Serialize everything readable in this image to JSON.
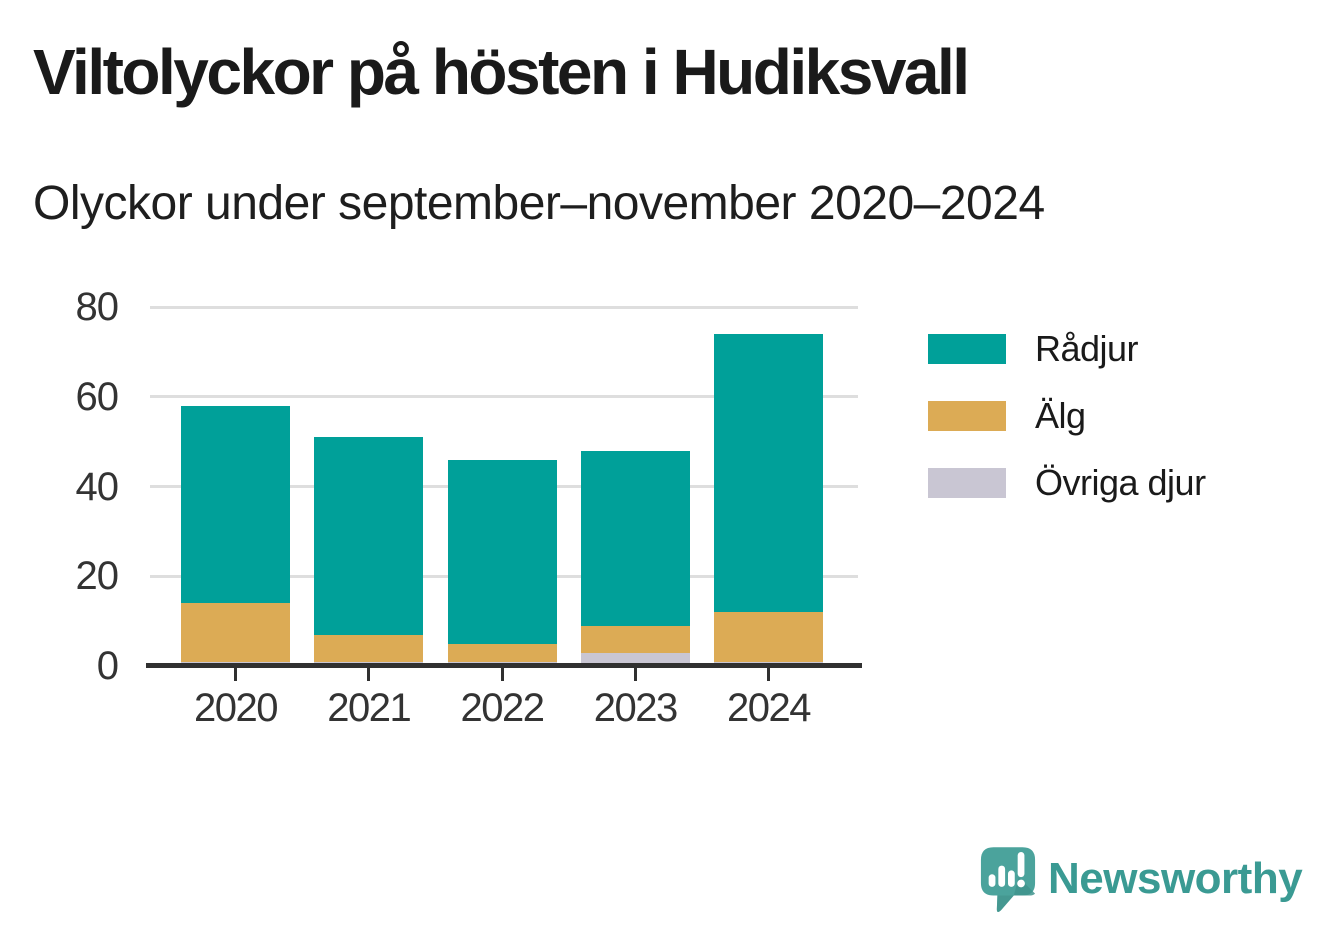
{
  "header": {
    "title": "Viltolyckor på hösten i Hudiksvall",
    "subtitle": "Olyckor under september–november 2020–2024"
  },
  "chart_data": {
    "type": "bar",
    "stacked": true,
    "title": "Viltolyckor på hösten i Hudiksvall",
    "subtitle": "Olyckor under september–november 2020–2024",
    "categories": [
      "2020",
      "2021",
      "2022",
      "2023",
      "2024"
    ],
    "series": [
      {
        "name": "Rådjur",
        "color": "#00a099",
        "values": [
          44,
          44,
          41,
          39,
          62
        ]
      },
      {
        "name": "Älg",
        "color": "#dcab55",
        "values": [
          13,
          6,
          4,
          6,
          11
        ]
      },
      {
        "name": "Övriga djur",
        "color": "#c9c6d3",
        "values": [
          1,
          1,
          1,
          3,
          1
        ]
      }
    ],
    "stack_order_bottom_to_top": [
      "Övriga djur",
      "Älg",
      "Rådjur"
    ],
    "totals": [
      58,
      51,
      46,
      48,
      74
    ],
    "xlabel": "",
    "ylabel": "",
    "ylim": [
      0,
      80
    ],
    "yticks": [
      0,
      20,
      40,
      60,
      80
    ],
    "grid": true,
    "legend_position": "right"
  },
  "colors": {
    "axis": "#303030",
    "gridline": "#dedede",
    "tick_label": "#333333",
    "title_text": "#1a1a1a",
    "brand": "#3a9a93"
  },
  "branding": {
    "logo_text": "Newsworthy"
  }
}
